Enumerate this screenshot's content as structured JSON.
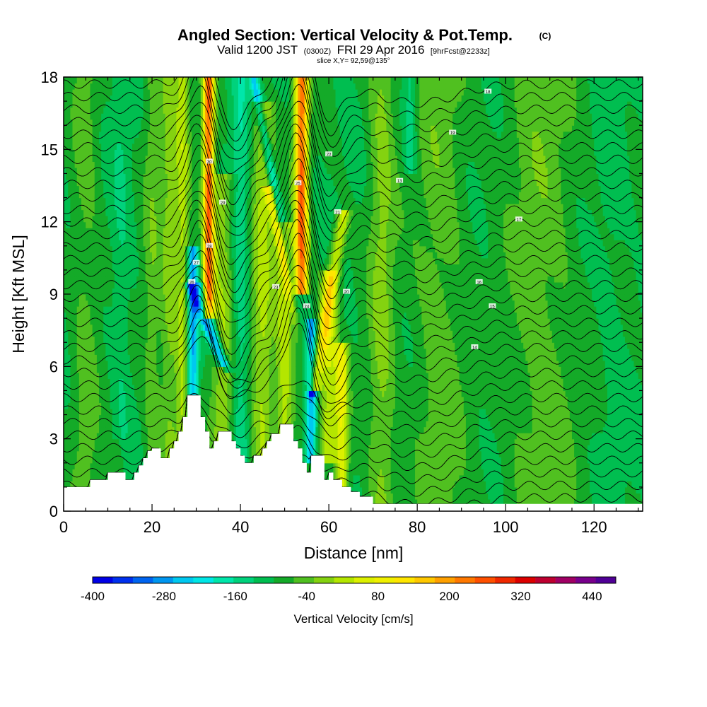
{
  "chart_data": {
    "type": "heatmap",
    "title": "Angled Section: Vertical Velocity & Pot.Temp.",
    "title_unit": "(C)",
    "subtitle": {
      "a": "Valid 1200 JST",
      "b": "(0300Z)",
      "c": "FRI 29 Apr 2016",
      "d": "[9hrFcst@2233z]"
    },
    "slice_label": "slice X,Y= 92,59@135°",
    "xlabel": "Distance [nm]",
    "ylabel": "Height [Kft MSL]",
    "xlim": [
      0,
      131
    ],
    "ylim": [
      0,
      18
    ],
    "x_ticks": [
      0,
      20,
      40,
      60,
      80,
      100,
      120
    ],
    "y_ticks": [
      0,
      3,
      6,
      9,
      12,
      15,
      18
    ],
    "colorbar": {
      "label": "Vertical Velocity [cm/s]",
      "ticks": [
        -400,
        -280,
        -160,
        -40,
        80,
        200,
        320,
        440
      ],
      "range": [
        -400,
        480
      ],
      "step": 40,
      "colors": [
        "#0000e6",
        "#0030ee",
        "#0064f0",
        "#0096f0",
        "#00c8f0",
        "#00e6e6",
        "#00e6aa",
        "#00d27c",
        "#00be50",
        "#14aa28",
        "#50c020",
        "#84d210",
        "#b4e600",
        "#dcf000",
        "#f0f000",
        "#ffe600",
        "#ffc800",
        "#ffa000",
        "#ff7800",
        "#ff5000",
        "#f02800",
        "#dc0000",
        "#be0030",
        "#a00064",
        "#78008c",
        "#500096"
      ]
    },
    "terrain": [
      [
        0,
        1.0
      ],
      [
        6,
        1.0
      ],
      [
        6,
        1.3
      ],
      [
        10,
        1.3
      ],
      [
        10,
        1.6
      ],
      [
        14,
        1.6
      ],
      [
        14,
        1.3
      ],
      [
        16,
        1.3
      ],
      [
        16,
        1.6
      ],
      [
        17,
        1.6
      ],
      [
        17,
        1.9
      ],
      [
        18,
        1.9
      ],
      [
        18,
        2.2
      ],
      [
        19,
        2.2
      ],
      [
        19,
        2.5
      ],
      [
        20,
        2.5
      ],
      [
        20,
        2.6
      ],
      [
        22,
        2.6
      ],
      [
        22,
        2.2
      ],
      [
        24,
        2.2
      ],
      [
        24,
        2.6
      ],
      [
        25,
        2.6
      ],
      [
        25,
        2.9
      ],
      [
        26,
        2.9
      ],
      [
        26,
        3.3
      ],
      [
        27,
        3.3
      ],
      [
        27,
        3.9
      ],
      [
        28,
        3.9
      ],
      [
        28,
        4.8
      ],
      [
        31,
        4.8
      ],
      [
        31,
        3.9
      ],
      [
        32,
        3.9
      ],
      [
        32,
        3.3
      ],
      [
        33,
        3.3
      ],
      [
        33,
        2.6
      ],
      [
        34,
        2.6
      ],
      [
        34,
        2.9
      ],
      [
        35,
        2.9
      ],
      [
        35,
        3.3
      ],
      [
        38,
        3.3
      ],
      [
        38,
        2.9
      ],
      [
        39,
        2.9
      ],
      [
        39,
        2.6
      ],
      [
        40,
        2.6
      ],
      [
        40,
        2.3
      ],
      [
        41,
        2.3
      ],
      [
        41,
        2.0
      ],
      [
        43,
        2.0
      ],
      [
        43,
        2.3
      ],
      [
        45,
        2.3
      ],
      [
        45,
        2.6
      ],
      [
        46,
        2.6
      ],
      [
        46,
        2.9
      ],
      [
        47,
        2.9
      ],
      [
        47,
        3.2
      ],
      [
        49,
        3.2
      ],
      [
        49,
        3.6
      ],
      [
        52,
        3.6
      ],
      [
        52,
        2.9
      ],
      [
        53,
        2.9
      ],
      [
        53,
        2.6
      ],
      [
        54,
        2.6
      ],
      [
        54,
        2.0
      ],
      [
        55,
        2.0
      ],
      [
        55,
        1.6
      ],
      [
        56,
        1.6
      ],
      [
        56,
        2.3
      ],
      [
        59,
        2.3
      ],
      [
        59,
        1.3
      ],
      [
        60,
        1.3
      ],
      [
        60,
        1.6
      ],
      [
        61,
        1.6
      ],
      [
        61,
        1.3
      ],
      [
        63,
        1.3
      ],
      [
        63,
        1.0
      ],
      [
        65,
        1.0
      ],
      [
        65,
        0.8
      ],
      [
        67,
        0.8
      ],
      [
        67,
        0.6
      ],
      [
        70,
        0.6
      ],
      [
        70,
        0.3
      ],
      [
        131,
        0.3
      ]
    ],
    "field": {
      "background": -40,
      "bands": [
        {
          "x": 5,
          "w": 3,
          "v": 20,
          "y0": 0,
          "y1": 18
        },
        {
          "x": 13,
          "w": 2,
          "v": -80,
          "y0": 3,
          "y1": 18
        },
        {
          "x": 20,
          "w": 2,
          "v": 30,
          "y0": 0,
          "y1": 18
        },
        {
          "x": 24,
          "w": 2,
          "v": 60,
          "y0": 0,
          "y1": 18
        },
        {
          "x": 27,
          "w": 1.5,
          "v": 100,
          "y0": 2,
          "y1": 18
        },
        {
          "x": 29.2,
          "w": 1.2,
          "v": -280,
          "y0": 3,
          "y1": 11
        },
        {
          "x": 32.8,
          "w": 1.3,
          "v": 400,
          "y0": 8,
          "y1": 18
        },
        {
          "x": 36,
          "w": 2.5,
          "v": 80,
          "y0": 2,
          "y1": 14
        },
        {
          "x": 40,
          "w": 2,
          "v": -120,
          "y0": 2,
          "y1": 18
        },
        {
          "x": 45,
          "w": 2.5,
          "v": 100,
          "y0": 2,
          "y1": 17
        },
        {
          "x": 50,
          "w": 2,
          "v": 120,
          "y0": 3,
          "y1": 12
        },
        {
          "x": 53.8,
          "w": 1.5,
          "v": 400,
          "y0": 9,
          "y1": 18
        },
        {
          "x": 56,
          "w": 1.2,
          "v": -280,
          "y0": 2,
          "y1": 8
        },
        {
          "x": 60,
          "w": 2,
          "v": 120,
          "y0": 2,
          "y1": 10
        },
        {
          "x": 63,
          "w": 1.5,
          "v": 160,
          "y0": 1,
          "y1": 7
        },
        {
          "x": 72,
          "w": 3,
          "v": 60,
          "y0": 0,
          "y1": 18
        },
        {
          "x": 78.5,
          "w": 1.5,
          "v": -120,
          "y0": 14,
          "y1": 18
        },
        {
          "x": 85,
          "w": 6,
          "v": 30,
          "y0": 0,
          "y1": 18
        },
        {
          "x": 100,
          "w": 5,
          "v": -40,
          "y0": 0,
          "y1": 18
        },
        {
          "x": 108,
          "w": 8,
          "v": 30,
          "y0": 0,
          "y1": 18
        },
        {
          "x": 124,
          "w": 3,
          "v": -60,
          "y0": 0,
          "y1": 18
        }
      ],
      "tilted": [
        {
          "xb": 29.5,
          "yb": 9,
          "xt": 35,
          "yt": 6.5,
          "w": 1.1,
          "v": -280
        },
        {
          "xb": 31.5,
          "yb": 9,
          "xt": 36.5,
          "yt": 6.2,
          "w": 1.0,
          "v": -200
        },
        {
          "xb": 43,
          "yb": 18,
          "xt": 56,
          "yt": 5.2,
          "w": 1.0,
          "v": -240
        },
        {
          "xb": 47,
          "yb": 13,
          "xt": 56,
          "yt": 5.5,
          "w": 1.2,
          "v": 200
        },
        {
          "xb": 57,
          "yb": 5.5,
          "xt": 63,
          "yt": 12,
          "w": 1.5,
          "v": 160
        }
      ]
    },
    "contour_labels": [
      "30",
      "29",
      "28",
      "27",
      "26",
      "25",
      "24",
      "23",
      "22",
      "21",
      "20",
      "19",
      "18",
      "17",
      "16",
      "15",
      "14",
      "13"
    ]
  }
}
